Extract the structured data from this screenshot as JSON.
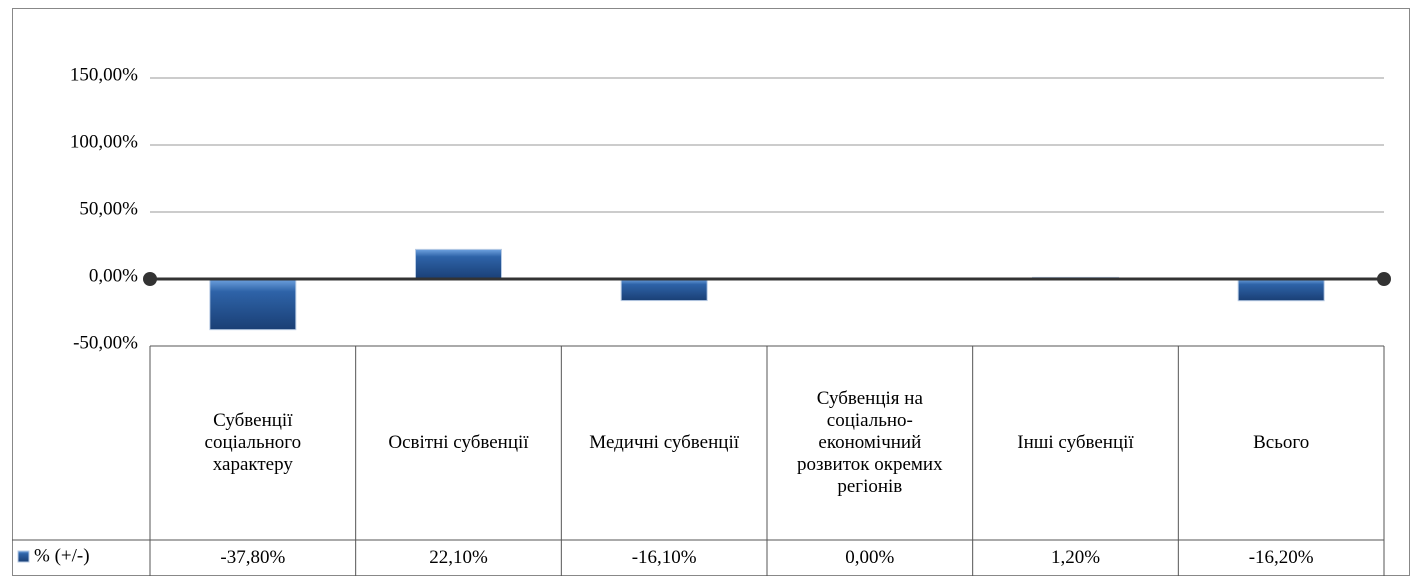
{
  "chart_data": {
    "type": "bar",
    "categories": [
      "Субвенції соціального характеру",
      "Освітні субвенції",
      "Медичні субвенції",
      "Субвенція на соціально-економічний розвиток окремих регіонів",
      "Інші субвенції",
      "Всього"
    ],
    "series": [
      {
        "name": "% (+/-)",
        "color": "#2e63a8",
        "values": [
          -37.8,
          22.1,
          -16.1,
          0,
          1.2,
          -16.2
        ],
        "value_labels": [
          "-37,80%",
          "22,10%",
          "-16,10%",
          "0,00%",
          "1,20%",
          "-16,20%"
        ]
      }
    ],
    "ylim": [
      -50,
      150
    ],
    "yticks": [
      {
        "value": -50,
        "label": "-50,00%"
      },
      {
        "value": 0,
        "label": "0,00%"
      },
      {
        "value": 50,
        "label": "50,00%"
      },
      {
        "value": 100,
        "label": "100,00%"
      },
      {
        "value": 150,
        "label": "150,00%"
      }
    ],
    "grid": true
  }
}
